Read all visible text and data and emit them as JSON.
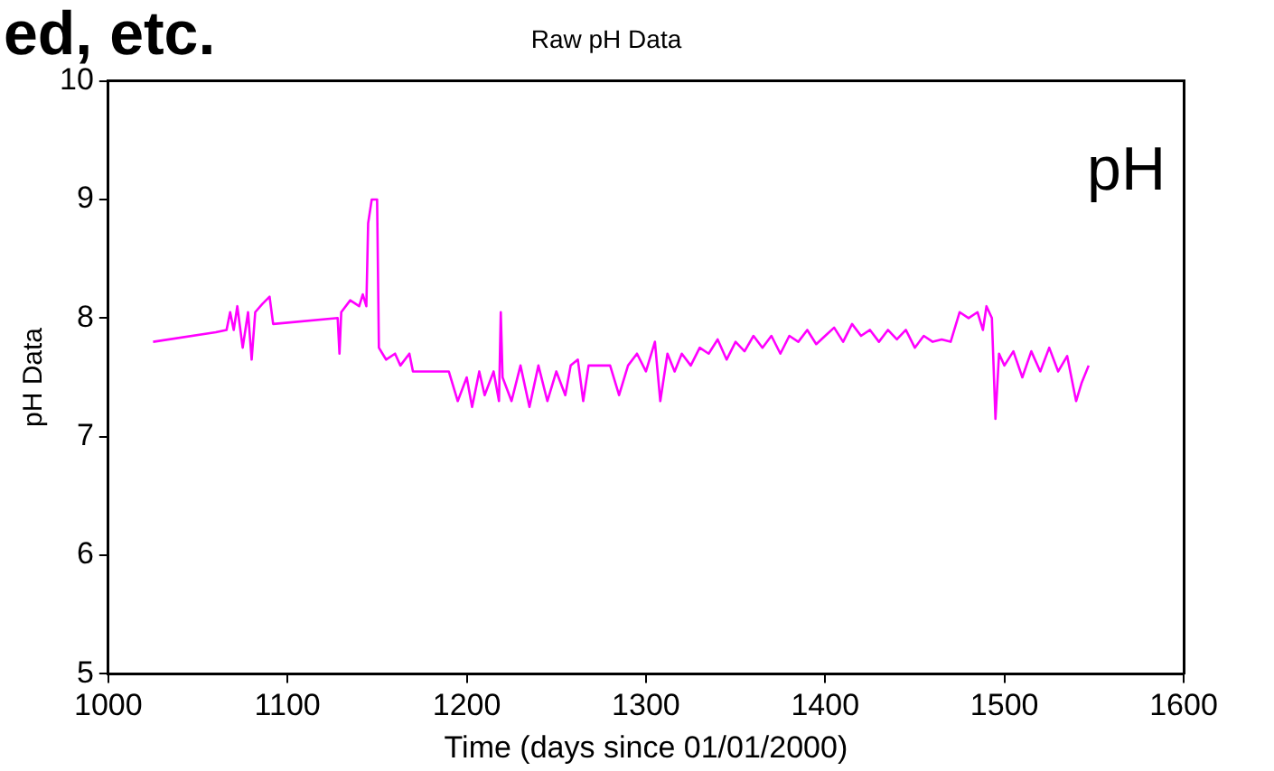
{
  "chart_data": {
    "type": "line",
    "title": "Raw pH Data",
    "xlabel": "Time (days since 01/01/2000)",
    "ylabel": "pH Data",
    "annotations": [
      "ed, etc.",
      "pH"
    ],
    "x": [
      1025,
      1060,
      1066,
      1068,
      1070,
      1072,
      1075,
      1078,
      1080,
      1082,
      1086,
      1090,
      1092,
      1128,
      1129,
      1130,
      1135,
      1140,
      1142,
      1144,
      1145,
      1147,
      1150,
      1151,
      1153,
      1155,
      1160,
      1163,
      1168,
      1170,
      1190,
      1195,
      1200,
      1203,
      1207,
      1210,
      1215,
      1218,
      1219,
      1220,
      1225,
      1230,
      1235,
      1240,
      1245,
      1250,
      1255,
      1258,
      1262,
      1265,
      1268,
      1280,
      1285,
      1290,
      1295,
      1300,
      1305,
      1308,
      1312,
      1316,
      1320,
      1325,
      1330,
      1335,
      1340,
      1345,
      1350,
      1355,
      1360,
      1365,
      1370,
      1375,
      1380,
      1385,
      1390,
      1395,
      1400,
      1405,
      1410,
      1415,
      1420,
      1425,
      1430,
      1435,
      1440,
      1445,
      1450,
      1455,
      1460,
      1465,
      1470,
      1475,
      1480,
      1485,
      1488,
      1490,
      1493,
      1495,
      1497,
      1500,
      1505,
      1510,
      1515,
      1520,
      1525,
      1530,
      1535,
      1540,
      1543,
      1547
    ],
    "series": [
      {
        "color": "#ff00ff",
        "values": [
          7.8,
          7.88,
          7.9,
          8.05,
          7.9,
          8.1,
          7.75,
          8.05,
          7.65,
          8.05,
          8.12,
          8.18,
          7.95,
          8.0,
          7.7,
          8.05,
          8.15,
          8.1,
          8.2,
          8.1,
          8.8,
          9.0,
          9.0,
          7.75,
          7.7,
          7.65,
          7.7,
          7.6,
          7.7,
          7.55,
          7.55,
          7.3,
          7.5,
          7.25,
          7.55,
          7.35,
          7.55,
          7.3,
          8.05,
          7.5,
          7.3,
          7.6,
          7.25,
          7.6,
          7.3,
          7.55,
          7.35,
          7.6,
          7.65,
          7.3,
          7.6,
          7.6,
          7.35,
          7.6,
          7.7,
          7.55,
          7.8,
          7.3,
          7.7,
          7.55,
          7.7,
          7.6,
          7.75,
          7.7,
          7.82,
          7.65,
          7.8,
          7.72,
          7.85,
          7.75,
          7.85,
          7.7,
          7.85,
          7.8,
          7.9,
          7.78,
          7.85,
          7.92,
          7.8,
          7.95,
          7.85,
          7.9,
          7.8,
          7.9,
          7.82,
          7.9,
          7.75,
          7.85,
          7.8,
          7.82,
          7.8,
          8.05,
          8.0,
          8.05,
          7.9,
          8.1,
          8.0,
          7.15,
          7.7,
          7.6,
          7.72,
          7.5,
          7.72,
          7.55,
          7.75,
          7.55,
          7.68,
          7.3,
          7.45,
          7.6
        ]
      }
    ],
    "xlim": [
      1000,
      1600
    ],
    "xticks": [
      1000,
      1100,
      1200,
      1300,
      1400,
      1500,
      1600
    ],
    "ylim": [
      5,
      10
    ],
    "yticks": [
      5,
      6,
      7,
      8,
      9,
      10
    ],
    "grid": false,
    "legend": false,
    "marker": "none",
    "line_style": "solid"
  }
}
